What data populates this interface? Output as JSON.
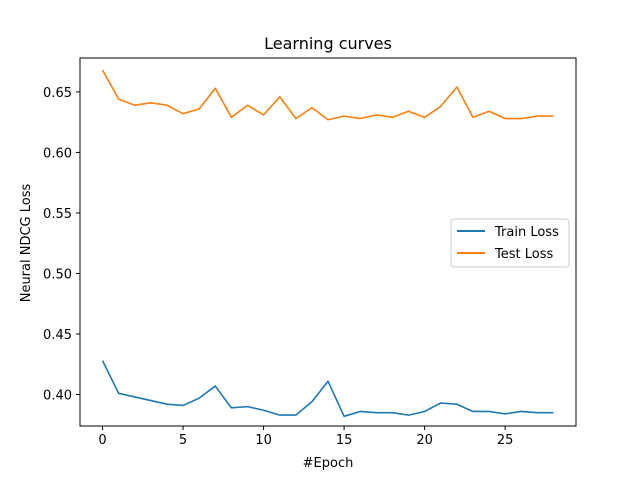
{
  "chart_data": {
    "type": "line",
    "title": "Learning curves",
    "xlabel": "#Epoch",
    "ylabel": "Neural NDCG Loss",
    "xlim": [
      -1.4,
      29.4
    ],
    "ylim": [
      0.374,
      0.678
    ],
    "xticks": [
      0,
      5,
      10,
      15,
      20,
      25
    ],
    "yticks": [
      0.4,
      0.45,
      0.5,
      0.55,
      0.6,
      0.65
    ],
    "ytick_labels": [
      "0.40",
      "0.45",
      "0.50",
      "0.55",
      "0.60",
      "0.65"
    ],
    "grid": false,
    "legend_position": "center-right",
    "x": [
      0,
      1,
      2,
      3,
      4,
      5,
      6,
      7,
      8,
      9,
      10,
      11,
      12,
      13,
      14,
      15,
      16,
      17,
      18,
      19,
      20,
      21,
      22,
      23,
      24,
      25,
      26,
      27,
      28
    ],
    "series": [
      {
        "name": "Train Loss",
        "color": "#1f77b4",
        "values": [
          0.428,
          0.401,
          0.398,
          0.395,
          0.392,
          0.391,
          0.397,
          0.407,
          0.389,
          0.39,
          0.387,
          0.383,
          0.383,
          0.394,
          0.411,
          0.382,
          0.386,
          0.385,
          0.385,
          0.383,
          0.386,
          0.393,
          0.392,
          0.386,
          0.386,
          0.384,
          0.386,
          0.385,
          0.385
        ]
      },
      {
        "name": "Test Loss",
        "color": "#ff7f0e",
        "values": [
          0.668,
          0.644,
          0.639,
          0.641,
          0.639,
          0.632,
          0.636,
          0.653,
          0.629,
          0.639,
          0.631,
          0.646,
          0.628,
          0.637,
          0.627,
          0.63,
          0.628,
          0.631,
          0.629,
          0.634,
          0.629,
          0.638,
          0.654,
          0.629,
          0.634,
          0.628,
          0.628,
          0.63,
          0.63
        ]
      }
    ]
  }
}
